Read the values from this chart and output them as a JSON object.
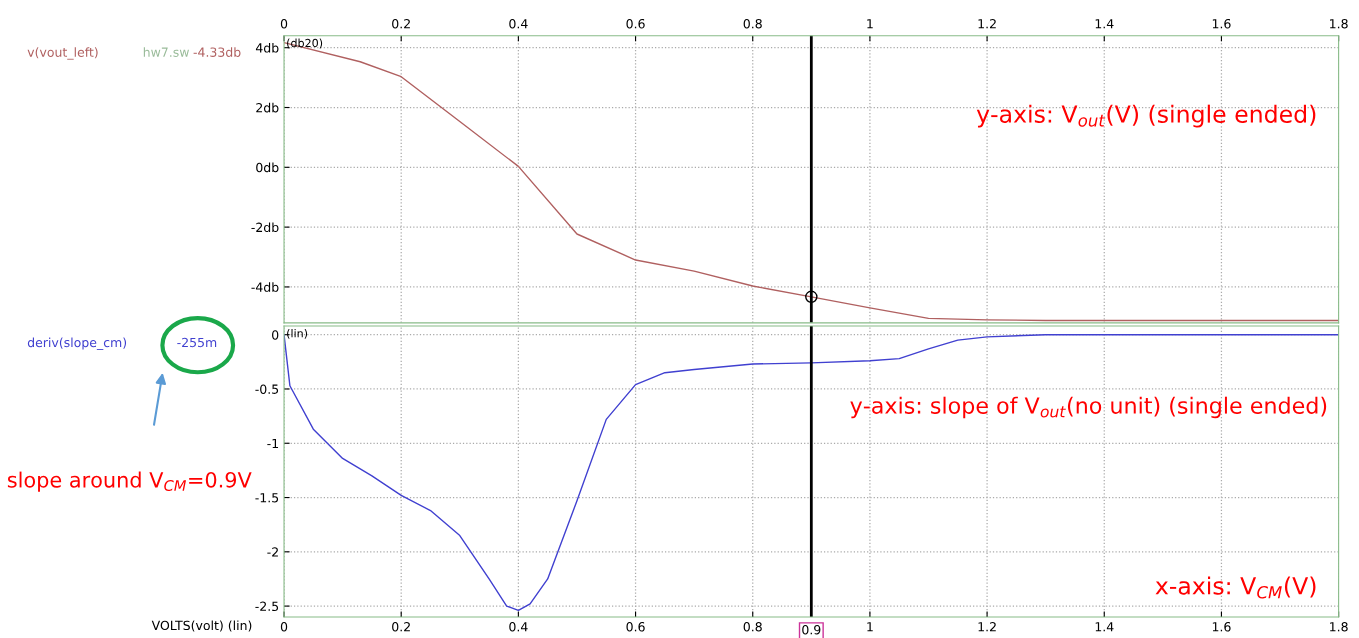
{
  "chart_data": [
    {
      "type": "line",
      "ylabel": "(db20)",
      "legend": "left",
      "grid": true,
      "tick_labels": "xy",
      "xlim": [
        0,
        1.8
      ],
      "xticks": [
        0,
        0.2,
        0.4,
        0.6,
        0.8,
        1,
        1.2,
        1.4,
        1.6,
        1.8
      ],
      "ylim": [
        -5.2,
        4.4
      ],
      "yticks": [
        {
          "value": 4,
          "label": "4db"
        },
        {
          "value": 2,
          "label": "2db"
        },
        {
          "value": 0,
          "label": "0db"
        },
        {
          "value": -2,
          "label": "-2db"
        },
        {
          "value": -4,
          "label": "-4db"
        }
      ],
      "ref_lines": [
        {
          "axis": "x",
          "value": 0.9,
          "color": "#000000"
        }
      ],
      "annotations": [
        "hw7.sw",
        "-4.33db",
        "y-axis: V$_{out}$(V) (single ended)"
      ],
      "series": [
        {
          "name": "v(vout_left)",
          "color": "#b06060",
          "x": [
            0,
            0.13,
            0.2,
            0.3,
            0.4,
            0.5,
            0.6,
            0.7,
            0.8,
            0.9,
            1.0,
            1.1,
            1.2,
            1.3,
            1.8
          ],
          "values": [
            4.17,
            3.53,
            3.03,
            1.53,
            0.03,
            -2.23,
            -3.1,
            -3.47,
            -3.97,
            -4.33,
            -4.7,
            -5.05,
            -5.1,
            -5.12,
            -5.12
          ]
        }
      ]
    },
    {
      "type": "line",
      "ylabel": "(lin)",
      "xlabel": "VOLTS(volt) (lin)",
      "grid": true,
      "legend": "left",
      "xlim": [
        0,
        1.8
      ],
      "xticks": [
        0,
        0.2,
        0.4,
        0.6,
        0.8,
        1,
        1.2,
        1.4,
        1.6,
        1.8
      ],
      "ylim": [
        -2.6,
        0.08
      ],
      "yticks": [
        0,
        -0.5,
        -1,
        -1.5,
        -2,
        -2.5
      ],
      "ref_lines": [
        {
          "axis": "x",
          "value": 0.9,
          "label": "0.9",
          "color": "#000000"
        }
      ],
      "annotations": [
        "-255m",
        "y-axis: slope of V$_{out}$(no unit) (single ended)",
        "slope around V$_{CM}$=0.9V",
        "x-axis: V$_{CM}$(V)"
      ],
      "series": [
        {
          "name": "deriv(slope_cm)",
          "color": "#4040d0",
          "x": [
            0,
            0.01,
            0.05,
            0.1,
            0.15,
            0.2,
            0.25,
            0.3,
            0.35,
            0.38,
            0.4,
            0.42,
            0.45,
            0.5,
            0.55,
            0.6,
            0.65,
            0.7,
            0.8,
            0.9,
            1.0,
            1.05,
            1.1,
            1.15,
            1.2,
            1.3,
            1.8
          ],
          "values": [
            0,
            -0.47,
            -0.87,
            -1.14,
            -1.3,
            -1.48,
            -1.62,
            -1.85,
            -2.25,
            -2.5,
            -2.54,
            -2.48,
            -2.25,
            -1.53,
            -0.78,
            -0.46,
            -0.35,
            -0.32,
            -0.27,
            -0.26,
            -0.24,
            -0.22,
            -0.13,
            -0.05,
            -0.02,
            0,
            0
          ]
        }
      ]
    }
  ]
}
